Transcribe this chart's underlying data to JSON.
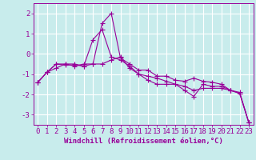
{
  "title": "",
  "xlabel": "Windchill (Refroidissement éolien,°C)",
  "background_color": "#c8ecec",
  "grid_color": "#aadddd",
  "line_color": "#990099",
  "series": [
    [
      0,
      -1.4,
      1,
      -0.9,
      2,
      -0.7,
      3,
      -0.5,
      4,
      -0.5,
      5,
      -0.6,
      6,
      -0.5,
      7,
      1.5,
      8,
      2.0,
      9,
      -0.2,
      10,
      -0.5,
      11,
      -0.8,
      12,
      -0.8,
      13,
      -1.1,
      14,
      -1.1,
      15,
      -1.3,
      16,
      -1.35,
      17,
      -1.2,
      18,
      -1.35,
      19,
      -1.4,
      20,
      -1.5,
      21,
      -1.8,
      22,
      -1.9,
      23,
      -3.4
    ],
    [
      0,
      -1.4,
      1,
      -0.9,
      2,
      -0.5,
      3,
      -0.5,
      4,
      -0.6,
      5,
      -0.5,
      6,
      -0.5,
      7,
      -0.5,
      8,
      -0.3,
      9,
      -0.15,
      10,
      -0.7,
      11,
      -1.0,
      12,
      -1.1,
      13,
      -1.2,
      14,
      -1.35,
      15,
      -1.5,
      16,
      -1.6,
      17,
      -1.8,
      18,
      -1.7,
      19,
      -1.7,
      20,
      -1.7,
      21,
      -1.8,
      22,
      -1.95,
      23,
      -3.4
    ],
    [
      0,
      -1.4,
      1,
      -0.9,
      2,
      -0.5,
      3,
      -0.55,
      4,
      -0.55,
      5,
      -0.6,
      6,
      0.7,
      7,
      1.2,
      8,
      -0.15,
      9,
      -0.3,
      10,
      -0.6,
      11,
      -1.0,
      12,
      -1.3,
      13,
      -1.5,
      14,
      -1.5,
      15,
      -1.5,
      16,
      -1.8,
      17,
      -2.1,
      18,
      -1.5,
      19,
      -1.6,
      20,
      -1.6,
      21,
      -1.8,
      22,
      -1.95,
      23,
      -3.4
    ]
  ],
  "ylim": [
    -3.5,
    2.5
  ],
  "xlim": [
    -0.5,
    23.5
  ],
  "yticks": [
    -3,
    -2,
    -1,
    0,
    1,
    2
  ],
  "xticks": [
    0,
    1,
    2,
    3,
    4,
    5,
    6,
    7,
    8,
    9,
    10,
    11,
    12,
    13,
    14,
    15,
    16,
    17,
    18,
    19,
    20,
    21,
    22,
    23
  ],
  "marker": "+",
  "markersize": 4.0,
  "linewidth": 0.8,
  "tick_fontsize": 6.5,
  "xlabel_fontsize": 6.5
}
